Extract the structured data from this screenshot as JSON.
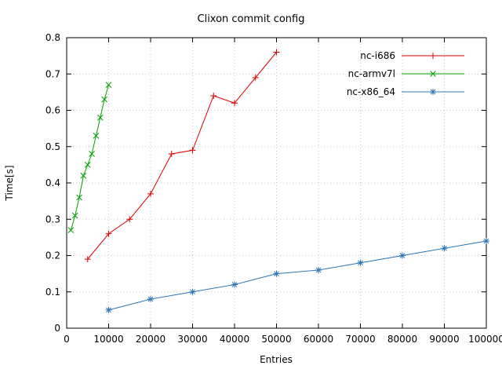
{
  "chart_data": {
    "type": "line",
    "title": "Clixon commit config",
    "xlabel": "Entries",
    "ylabel": "Time[s]",
    "xlim": [
      0,
      100000
    ],
    "ylim": [
      0,
      0.8
    ],
    "xticks": [
      0,
      10000,
      20000,
      30000,
      40000,
      50000,
      60000,
      70000,
      80000,
      90000,
      100000
    ],
    "yticks": [
      0,
      0.1,
      0.2,
      0.3,
      0.4,
      0.5,
      0.6,
      0.7,
      0.8
    ],
    "grid": true,
    "legend_position": "top-right",
    "series": [
      {
        "name": "nc-i686",
        "color": "#dd0000",
        "marker": "plus",
        "points": [
          [
            5000,
            0.19
          ],
          [
            10000,
            0.26
          ],
          [
            15000,
            0.3
          ],
          [
            20000,
            0.37
          ],
          [
            25000,
            0.48
          ],
          [
            30000,
            0.49
          ],
          [
            35000,
            0.64
          ],
          [
            40000,
            0.62
          ],
          [
            45000,
            0.69
          ],
          [
            50000,
            0.76
          ]
        ]
      },
      {
        "name": "nc-armv7l",
        "color": "#00a000",
        "marker": "x",
        "points": [
          [
            1000,
            0.27
          ],
          [
            2000,
            0.31
          ],
          [
            3000,
            0.36
          ],
          [
            4000,
            0.42
          ],
          [
            5000,
            0.45
          ],
          [
            6000,
            0.48
          ],
          [
            7000,
            0.53
          ],
          [
            8000,
            0.58
          ],
          [
            9000,
            0.63
          ],
          [
            10000,
            0.67
          ]
        ]
      },
      {
        "name": "nc-x86_64",
        "color": "#2e75b6",
        "marker": "star",
        "points": [
          [
            10000,
            0.05
          ],
          [
            20000,
            0.08
          ],
          [
            30000,
            0.1
          ],
          [
            40000,
            0.12
          ],
          [
            50000,
            0.15
          ],
          [
            60000,
            0.16
          ],
          [
            70000,
            0.18
          ],
          [
            80000,
            0.2
          ],
          [
            90000,
            0.22
          ],
          [
            100000,
            0.24
          ]
        ]
      }
    ]
  }
}
